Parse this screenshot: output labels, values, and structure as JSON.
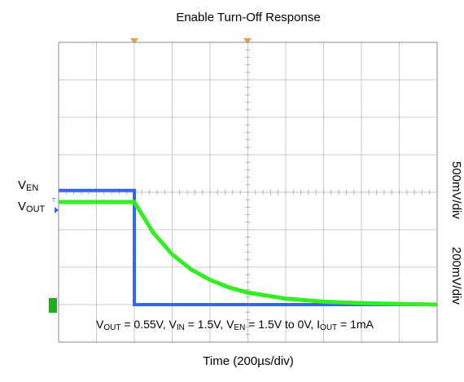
{
  "chart_data": {
    "type": "line",
    "title": "Enable Turn-Off Response",
    "x_label": "Time (200µs/div)",
    "y_labels": [
      "500mV/div",
      "200mV/div"
    ],
    "trace_labels": [
      [
        "V",
        "EN"
      ],
      [
        "V",
        "OUT"
      ]
    ],
    "trigger_label": "T",
    "annotation_parts": [
      "V",
      "OUT",
      " = 0.55V, V",
      "IN",
      " = 1.5V, V",
      "EN",
      " = 1.5V to 0V, I",
      "OUT",
      " = 1mA"
    ],
    "xlim": [
      0,
      10
    ],
    "ylim": [
      0,
      8
    ],
    "grid": true,
    "series": [
      {
        "name": "VEN",
        "color": "#3366ff",
        "x": [
          0,
          2,
          2,
          10
        ],
        "values": [
          4.05,
          4.05,
          1.0,
          1.0
        ]
      },
      {
        "name": "VOUT",
        "color": "#33ee22",
        "x": [
          0,
          2,
          2.5,
          3,
          3.5,
          4,
          4.5,
          5,
          6,
          7,
          8,
          10
        ],
        "values": [
          3.74,
          3.74,
          2.92,
          2.34,
          1.94,
          1.66,
          1.46,
          1.32,
          1.16,
          1.08,
          1.04,
          1.0
        ]
      }
    ]
  }
}
